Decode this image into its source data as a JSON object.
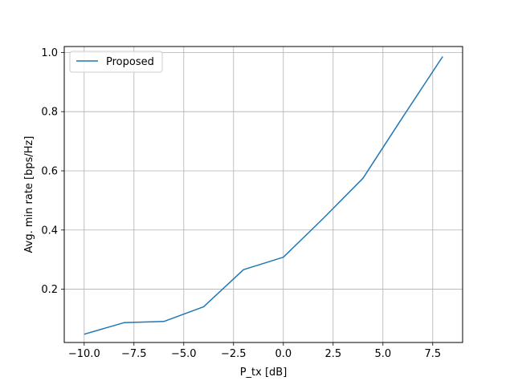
{
  "chart_data": {
    "type": "line",
    "xlabel": "P_tx [dB]",
    "ylabel": "Avg. min rate [bps/Hz]",
    "xlim": [
      -11,
      9
    ],
    "ylim": [
      0.02,
      1.02
    ],
    "xticks": [
      -10.0,
      -7.5,
      -5.0,
      -2.5,
      0.0,
      2.5,
      5.0,
      7.5
    ],
    "xtick_labels": [
      "−10.0",
      "−7.5",
      "−5.0",
      "−2.5",
      "0.0",
      "2.5",
      "5.0",
      "7.5"
    ],
    "yticks": [
      0.2,
      0.4,
      0.6,
      0.8,
      1.0
    ],
    "ytick_labels": [
      "0.2",
      "0.4",
      "0.6",
      "0.8",
      "1.0"
    ],
    "grid": true,
    "legend_position": "top-left",
    "series": [
      {
        "name": "Proposed",
        "color": "#1f77b4",
        "x": [
          -10,
          -8,
          -6,
          -4,
          -2,
          0,
          2,
          4,
          6,
          8
        ],
        "y": [
          0.048,
          0.087,
          0.091,
          0.141,
          0.266,
          0.308,
          0.439,
          0.575,
          0.782,
          0.986
        ]
      }
    ]
  }
}
